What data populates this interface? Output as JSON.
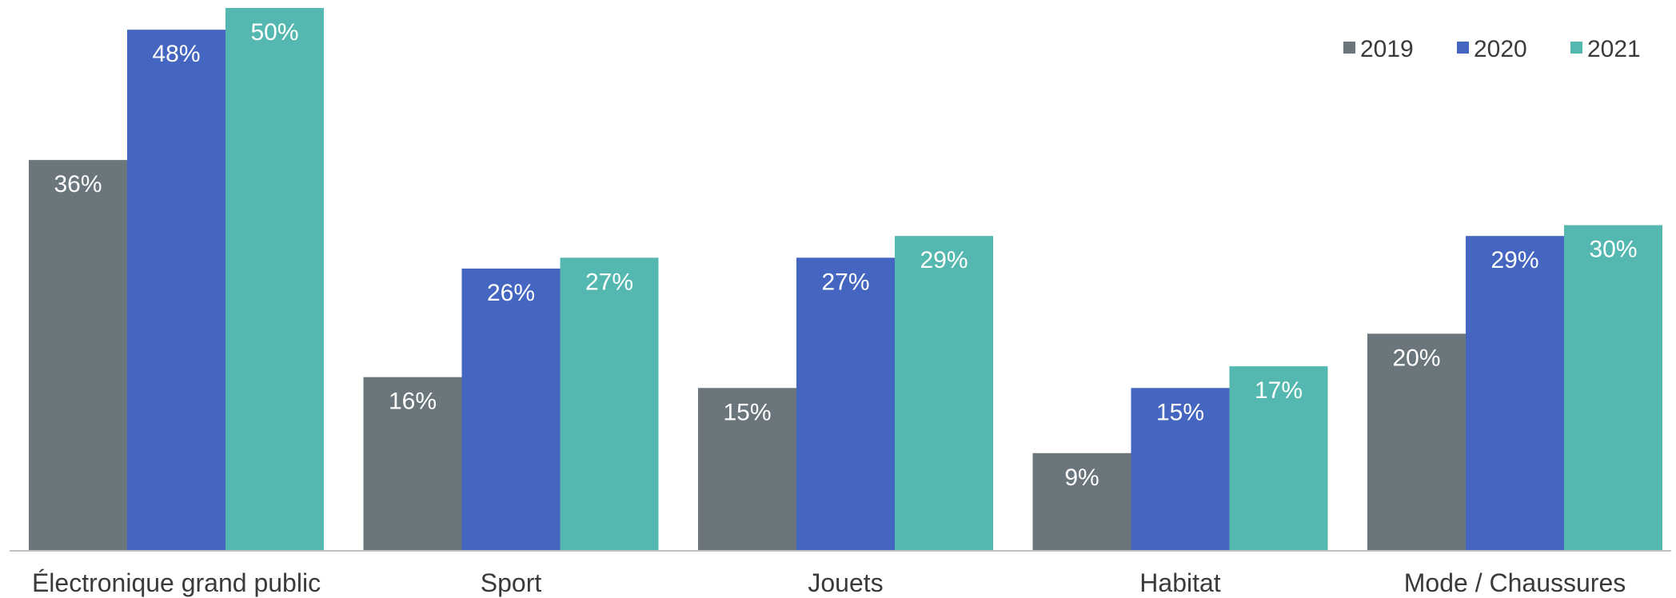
{
  "chart_data": {
    "type": "bar",
    "categories": [
      "Électronique grand public",
      "Sport",
      "Jouets",
      "Habitat",
      "Mode / Chaussures"
    ],
    "series": [
      {
        "name": "2019",
        "color": "#6b767c",
        "values": [
          36,
          16,
          15,
          9,
          20
        ],
        "labels": [
          "36%",
          "16%",
          "15%",
          "9%",
          "20%"
        ]
      },
      {
        "name": "2020",
        "color": "#4466c0",
        "values": [
          48,
          26,
          27,
          15,
          29
        ],
        "labels": [
          "48%",
          "26%",
          "27%",
          "15%",
          "29%"
        ]
      },
      {
        "name": "2021",
        "color": "#55b8b0",
        "values": [
          50,
          27,
          29,
          17,
          30
        ],
        "labels": [
          "50%",
          "27%",
          "29%",
          "17%",
          "30%"
        ]
      }
    ],
    "unit": "%",
    "ylim": [
      0,
      50
    ],
    "grid": false,
    "legend": "top-right",
    "axis_color": "#bfbfbf"
  }
}
